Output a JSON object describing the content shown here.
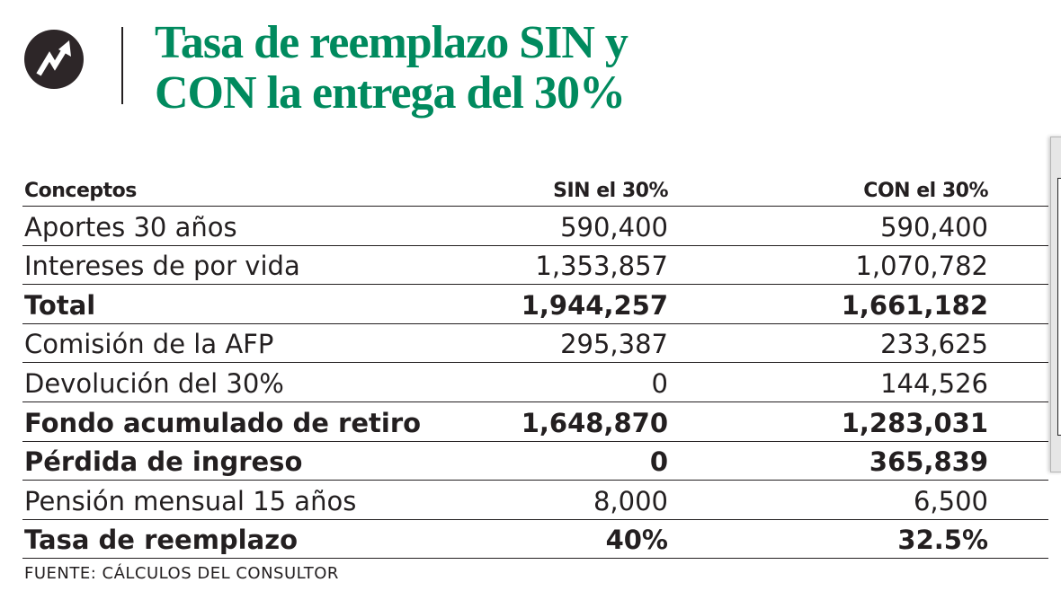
{
  "title": "Tasa de reemplazo SIN y CON la entrega del 30%",
  "title_lines": [
    "Tasa de reemplazo SIN y",
    "CON la entrega del 30%"
  ],
  "logo_icon": "trend-up-arrow-icon",
  "colors": {
    "title": "#008a5e",
    "text": "#231f20"
  },
  "chart_data": {
    "type": "table",
    "columns": [
      "Conceptos",
      "SIN el 30%",
      "CON el 30%"
    ],
    "rows": [
      {
        "label": "Aportes 30 años",
        "sin": "590,400",
        "con": "590,400",
        "bold": false
      },
      {
        "label": "Intereses de por vida",
        "sin": "1,353,857",
        "con": "1,070,782",
        "bold": false
      },
      {
        "label": "Total",
        "sin": "1,944,257",
        "con": "1,661,182",
        "bold": true
      },
      {
        "label": "Comisión de la AFP",
        "sin": "295,387",
        "con": "233,625",
        "bold": false
      },
      {
        "label": "Devolución del 30%",
        "sin": "0",
        "con": "144,526",
        "bold": false
      },
      {
        "label": "Fondo acumulado de retiro",
        "sin": "1,648,870",
        "con": "1,283,031",
        "bold": true
      },
      {
        "label": "Pérdida de ingreso",
        "sin": "0",
        "con": "365,839",
        "bold": true
      },
      {
        "label": "Pensión mensual 15 años",
        "sin": "8,000",
        "con": "6,500",
        "bold": false
      },
      {
        "label": "Tasa de reemplazo",
        "sin": "40%",
        "con": "32.5%",
        "bold": true
      }
    ]
  },
  "source": "FUENTE: CÁLCULOS DEL CONSULTOR"
}
